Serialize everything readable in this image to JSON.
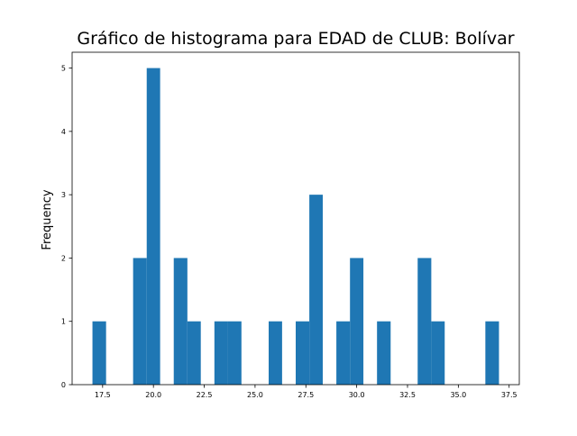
{
  "chart_data": {
    "type": "histogram",
    "title": "Gráfico de histograma para EDAD de CLUB: Bolívar",
    "xlabel": "",
    "ylabel": "Frequency",
    "xlim": [
      16.0,
      38.0
    ],
    "ylim": [
      0,
      5.25
    ],
    "x_ticks": [
      {
        "value": 17.5,
        "label": "17.5"
      },
      {
        "value": 20.0,
        "label": "20.0"
      },
      {
        "value": 22.5,
        "label": "22.5"
      },
      {
        "value": 25.0,
        "label": "25.0"
      },
      {
        "value": 27.5,
        "label": "27.5"
      },
      {
        "value": 30.0,
        "label": "30.0"
      },
      {
        "value": 32.5,
        "label": "32.5"
      },
      {
        "value": 35.0,
        "label": "35.0"
      },
      {
        "value": 37.5,
        "label": "37.5"
      }
    ],
    "y_ticks": [
      {
        "value": 0,
        "label": "0"
      },
      {
        "value": 1,
        "label": "1"
      },
      {
        "value": 2,
        "label": "2"
      },
      {
        "value": 3,
        "label": "3"
      },
      {
        "value": 4,
        "label": "4"
      },
      {
        "value": 5,
        "label": "5"
      }
    ],
    "bar_color": "#1f77b4",
    "grid": false,
    "bins": [
      {
        "x0": 17.0,
        "x1": 17.67,
        "count": 1
      },
      {
        "x0": 19.0,
        "x1": 19.67,
        "count": 2
      },
      {
        "x0": 19.67,
        "x1": 20.33,
        "count": 5
      },
      {
        "x0": 21.0,
        "x1": 21.67,
        "count": 2
      },
      {
        "x0": 21.67,
        "x1": 22.33,
        "count": 1
      },
      {
        "x0": 23.0,
        "x1": 23.67,
        "count": 1
      },
      {
        "x0": 23.67,
        "x1": 24.33,
        "count": 1
      },
      {
        "x0": 25.67,
        "x1": 26.33,
        "count": 1
      },
      {
        "x0": 27.0,
        "x1": 27.67,
        "count": 1
      },
      {
        "x0": 27.67,
        "x1": 28.33,
        "count": 3
      },
      {
        "x0": 29.0,
        "x1": 29.67,
        "count": 1
      },
      {
        "x0": 29.67,
        "x1": 30.33,
        "count": 2
      },
      {
        "x0": 31.0,
        "x1": 31.67,
        "count": 1
      },
      {
        "x0": 33.0,
        "x1": 33.67,
        "count": 2
      },
      {
        "x0": 33.67,
        "x1": 34.33,
        "count": 1
      },
      {
        "x0": 36.33,
        "x1": 37.0,
        "count": 1
      }
    ]
  }
}
